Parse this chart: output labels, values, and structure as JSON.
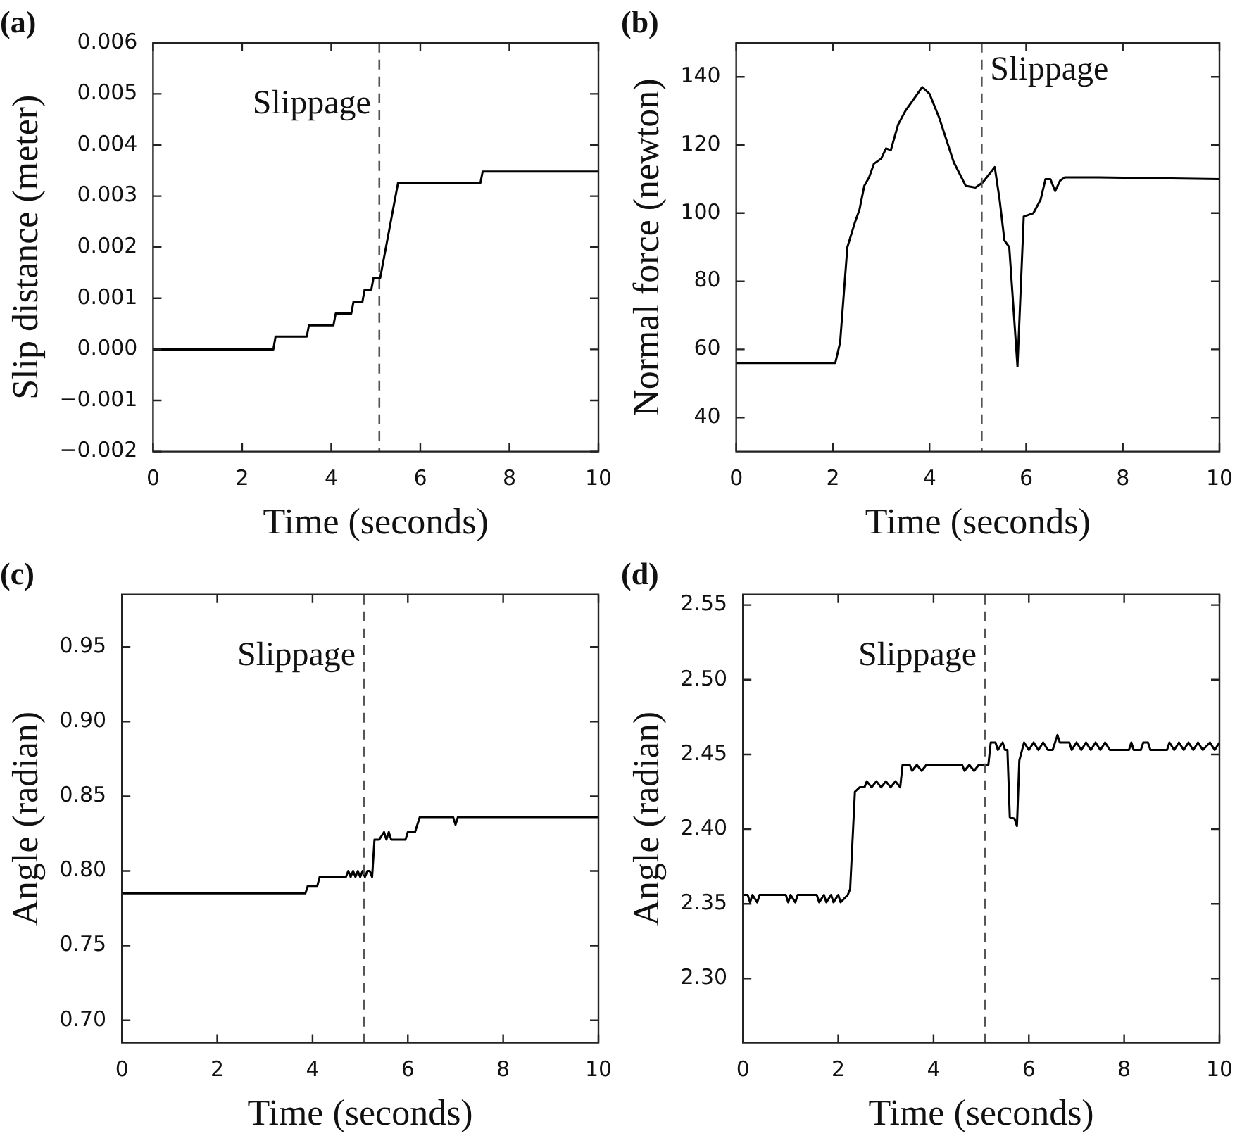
{
  "chart_data": [
    {
      "type": "line",
      "title": "(a)",
      "xlabel": "Time (seconds)",
      "ylabel": "Slip distance (meter)",
      "xlim": [
        0,
        10
      ],
      "xticks": [
        0,
        2,
        4,
        6,
        8,
        10
      ],
      "ylim": [
        -0.002,
        0.006
      ],
      "yticks": [
        {
          "value": -0.002,
          "label": "−0.002"
        },
        {
          "value": -0.001,
          "label": "−0.001"
        },
        {
          "value": 0,
          "label": "0.000"
        },
        0.001,
        0.002,
        0.003,
        0.004,
        0.005,
        0.006
      ],
      "marker": "none",
      "line_style": "solid",
      "color": "#000000",
      "x": [
        0,
        2.7,
        2.75,
        3.45,
        3.5,
        4.05,
        4.1,
        4.45,
        4.5,
        4.7,
        4.75,
        4.9,
        4.95,
        5.1,
        5.5,
        7.35,
        7.4,
        10
      ],
      "values": [
        0,
        0,
        0.00025,
        0.00025,
        0.00047,
        0.00047,
        0.0007,
        0.0007,
        0.00093,
        0.00093,
        0.00117,
        0.00117,
        0.0014,
        0.0014,
        0.00326,
        0.00326,
        0.00348,
        0.00348
      ],
      "ref_lines": [
        {
          "axis": "x",
          "value": 5.08,
          "label": "Slippage",
          "color": "#555555",
          "line_style": "dashed"
        }
      ]
    },
    {
      "type": "line",
      "title": "(b)",
      "xlabel": "Time (seconds)",
      "ylabel": "Normal force (newton)",
      "xlim": [
        0,
        10
      ],
      "xticks": [
        0,
        2,
        4,
        6,
        8,
        10
      ],
      "ylim": [
        30,
        150
      ],
      "yticks": [
        40,
        60,
        80,
        100,
        120,
        140
      ],
      "marker": "none",
      "line_style": "solid",
      "color": "#000000",
      "x": [
        0,
        2.05,
        2.15,
        2.3,
        2.45,
        2.55,
        2.65,
        2.75,
        2.85,
        3.0,
        3.1,
        3.2,
        3.35,
        3.5,
        3.65,
        3.85,
        4.0,
        4.2,
        4.5,
        4.75,
        4.95,
        5.1,
        5.35,
        5.45,
        5.55,
        5.65,
        5.82,
        5.95,
        6.15,
        6.3,
        6.4,
        6.5,
        6.6,
        6.7,
        6.8,
        7.5,
        8.5,
        10
      ],
      "values": [
        56,
        56,
        62,
        90,
        97,
        101,
        108,
        110.5,
        114.5,
        116,
        119,
        118.5,
        126,
        130,
        133,
        137,
        135,
        128,
        115,
        108,
        107.5,
        109,
        113.5,
        104,
        92,
        90,
        55,
        99,
        100,
        104,
        110,
        110,
        106.5,
        109.5,
        110.5,
        110.5,
        110.3,
        110
      ],
      "ref_lines": [
        {
          "axis": "x",
          "value": 5.08,
          "label": "Slippage",
          "color": "#555555",
          "line_style": "dashed"
        }
      ]
    },
    {
      "type": "line",
      "title": "(c)",
      "xlabel": "Time (seconds)",
      "ylabel": "Angle (radian)",
      "xlim": [
        0,
        10
      ],
      "xticks": [
        0,
        2,
        4,
        6,
        8,
        10
      ],
      "ylim": [
        0.685,
        0.985
      ],
      "yticks": [
        {
          "value": 0.7,
          "label": "0.70"
        },
        0.75,
        {
          "value": 0.8,
          "label": "0.80"
        },
        0.85,
        {
          "value": 0.9,
          "label": "0.90"
        },
        0.95
      ],
      "marker": "none",
      "line_style": "solid",
      "color": "#000000",
      "x": [
        0,
        3.85,
        3.9,
        4.1,
        4.15,
        4.7,
        4.75,
        4.8,
        4.85,
        4.9,
        4.95,
        5.0,
        5.05,
        5.1,
        5.15,
        5.2,
        5.25,
        5.3,
        5.4,
        5.5,
        5.55,
        5.6,
        5.65,
        5.95,
        6.0,
        6.15,
        6.25,
        6.95,
        7.0,
        7.05,
        10
      ],
      "values": [
        0.785,
        0.785,
        0.79,
        0.79,
        0.796,
        0.796,
        0.8,
        0.796,
        0.8,
        0.796,
        0.8,
        0.796,
        0.8,
        0.796,
        0.8,
        0.8,
        0.796,
        0.821,
        0.821,
        0.826,
        0.821,
        0.826,
        0.821,
        0.821,
        0.826,
        0.826,
        0.836,
        0.836,
        0.831,
        0.836,
        0.836
      ],
      "ref_lines": [
        {
          "axis": "x",
          "value": 5.08,
          "label": "Slippage",
          "color": "#555555",
          "line_style": "dashed"
        }
      ]
    },
    {
      "type": "line",
      "title": "(d)",
      "xlabel": "Time (seconds)",
      "ylabel": "Angle (radian)",
      "xlim": [
        0,
        10
      ],
      "xticks": [
        0,
        2,
        4,
        6,
        8,
        10
      ],
      "ylim": [
        2.257,
        2.557
      ],
      "yticks": [
        {
          "value": 2.3,
          "label": "2.30"
        },
        2.35,
        {
          "value": 2.4,
          "label": "2.40"
        },
        2.45,
        {
          "value": 2.5,
          "label": "2.50"
        },
        2.55
      ],
      "marker": "none",
      "line_style": "solid",
      "color": "#000000",
      "x": [
        0,
        0.1,
        0.15,
        0.2,
        0.3,
        0.35,
        0.9,
        0.95,
        1.0,
        1.1,
        1.15,
        1.55,
        1.6,
        1.7,
        1.75,
        1.85,
        1.9,
        2.0,
        2.05,
        2.2,
        2.25,
        2.35,
        2.45,
        2.55,
        2.6,
        2.7,
        2.8,
        2.9,
        3.0,
        3.1,
        3.2,
        3.3,
        3.35,
        3.5,
        3.55,
        3.65,
        3.75,
        3.85,
        4.6,
        4.65,
        4.75,
        4.85,
        4.95,
        5.15,
        5.2,
        5.3,
        5.35,
        5.45,
        5.5,
        5.55,
        5.6,
        5.7,
        5.75,
        5.8,
        5.9,
        6.0,
        6.1,
        6.2,
        6.3,
        6.4,
        6.5,
        6.6,
        6.65,
        6.85,
        6.9,
        7.0,
        7.1,
        7.2,
        7.3,
        7.4,
        7.5,
        7.6,
        7.7,
        8.1,
        8.15,
        8.2,
        8.35,
        8.4,
        8.5,
        8.55,
        8.9,
        8.95,
        9.05,
        9.15,
        9.25,
        9.35,
        9.45,
        9.55,
        9.65,
        9.8,
        9.9,
        10
      ],
      "values": [
        2.356,
        2.356,
        2.351,
        2.356,
        2.351,
        2.356,
        2.356,
        2.351,
        2.356,
        2.351,
        2.356,
        2.356,
        2.351,
        2.356,
        2.351,
        2.356,
        2.351,
        2.356,
        2.351,
        2.356,
        2.36,
        2.425,
        2.428,
        2.428,
        2.432,
        2.428,
        2.432,
        2.428,
        2.432,
        2.428,
        2.432,
        2.428,
        2.443,
        2.443,
        2.439,
        2.443,
        2.439,
        2.443,
        2.443,
        2.439,
        2.443,
        2.439,
        2.443,
        2.443,
        2.458,
        2.458,
        2.453,
        2.458,
        2.453,
        2.453,
        2.408,
        2.407,
        2.402,
        2.446,
        2.458,
        2.453,
        2.458,
        2.453,
        2.458,
        2.453,
        2.453,
        2.463,
        2.458,
        2.458,
        2.453,
        2.458,
        2.453,
        2.458,
        2.453,
        2.458,
        2.453,
        2.458,
        2.453,
        2.453,
        2.458,
        2.453,
        2.453,
        2.458,
        2.458,
        2.453,
        2.453,
        2.458,
        2.453,
        2.458,
        2.453,
        2.458,
        2.453,
        2.458,
        2.453,
        2.458,
        2.453,
        2.458
      ],
      "ref_lines": [
        {
          "axis": "x",
          "value": 5.08,
          "label": "Slippage",
          "color": "#555555",
          "line_style": "dashed"
        }
      ]
    }
  ]
}
